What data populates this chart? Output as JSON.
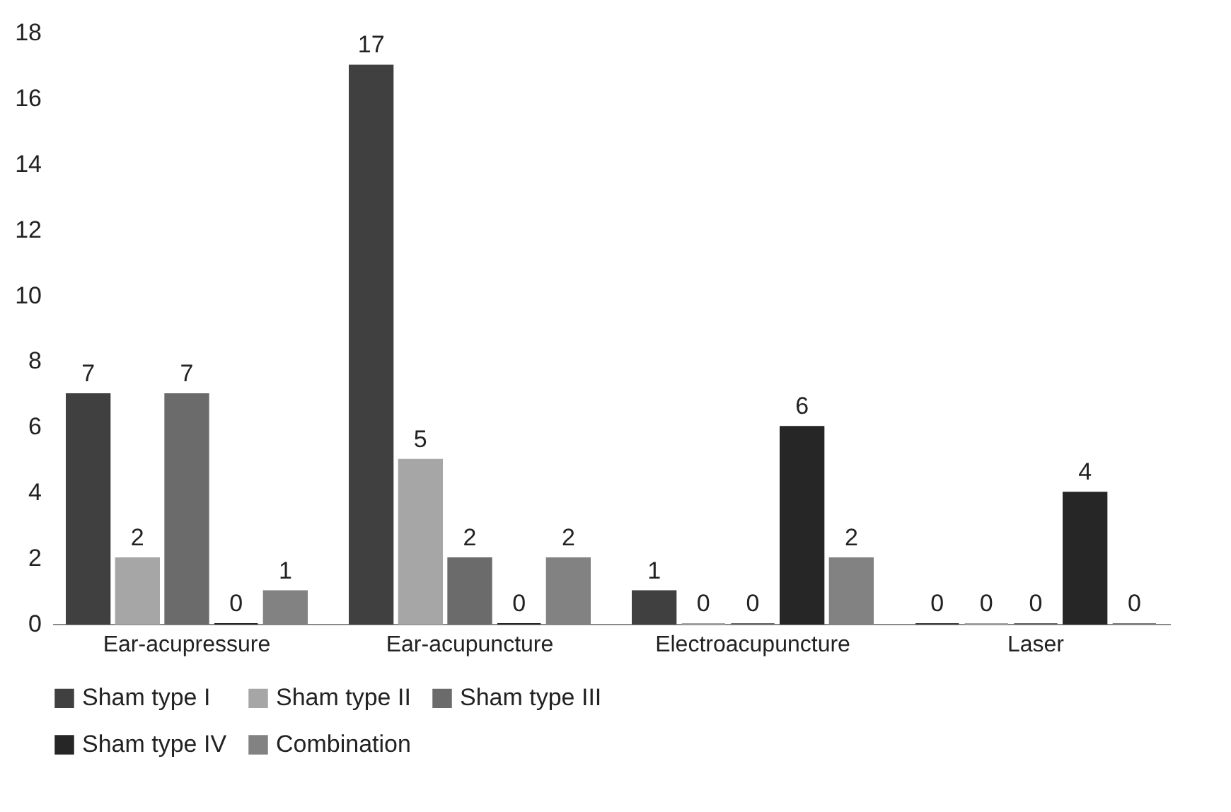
{
  "chart_data": {
    "type": "bar",
    "categories": [
      "Ear-acupressure",
      "Ear-acupuncture",
      "Electroacupuncture",
      "Laser"
    ],
    "series": [
      {
        "name": "Sham type I",
        "color": "#404040",
        "values": [
          7,
          17,
          1,
          0
        ]
      },
      {
        "name": "Sham type II",
        "color": "#a6a6a6",
        "values": [
          2,
          5,
          0,
          0
        ]
      },
      {
        "name": "Sham type III",
        "color": "#6b6b6b",
        "values": [
          7,
          2,
          0,
          0
        ]
      },
      {
        "name": "Sham type IV",
        "color": "#262626",
        "values": [
          0,
          0,
          6,
          4
        ]
      },
      {
        "name": "Combination",
        "color": "#828282",
        "values": [
          1,
          2,
          2,
          0
        ]
      }
    ],
    "ylim": [
      0,
      18
    ],
    "yticks": [
      0,
      2,
      4,
      6,
      8,
      10,
      12,
      14,
      16,
      18
    ],
    "grid": false,
    "legend": "bottom",
    "data_labels": true
  }
}
